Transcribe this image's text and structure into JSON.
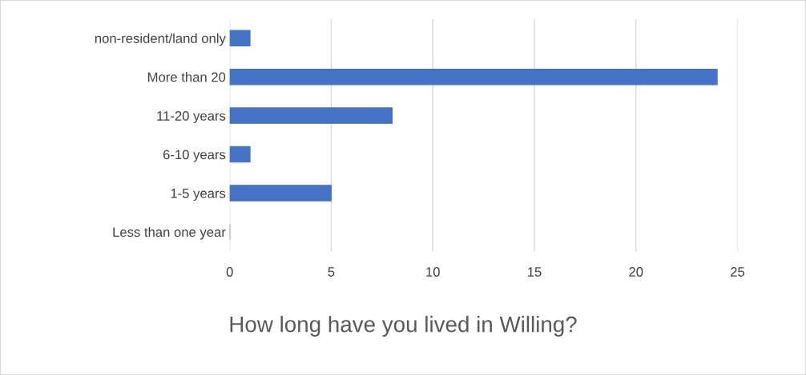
{
  "chart_data": {
    "type": "bar",
    "orientation": "horizontal",
    "title": "How long have you lived in Willing?",
    "categories": [
      "non-resident/land only",
      "More than 20",
      "11-20 years",
      "6-10 years",
      "1-5 years",
      "Less than one year"
    ],
    "values": [
      1,
      24,
      8,
      1,
      5,
      0
    ],
    "color": "#4472c4",
    "xlim": [
      0,
      25
    ],
    "xticks": [
      0,
      5,
      10,
      15,
      20,
      25
    ],
    "grid": "x",
    "legend": false
  }
}
